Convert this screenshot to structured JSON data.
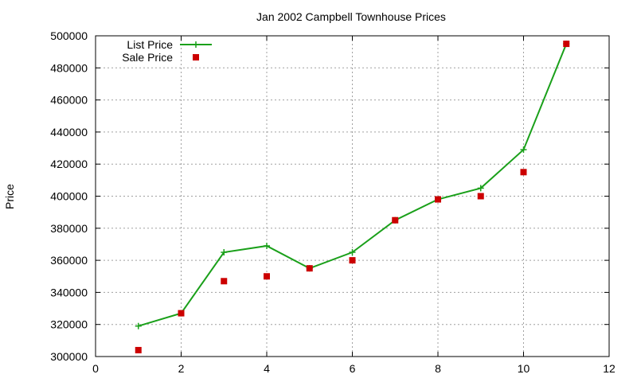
{
  "chart_data": {
    "type": "line",
    "title": "Jan 2002 Campbell Townhouse Prices",
    "xlabel": "",
    "ylabel": "Price",
    "xlim": [
      0,
      12
    ],
    "ylim": [
      300000,
      500000
    ],
    "xticks": [
      0,
      2,
      4,
      6,
      8,
      10,
      12
    ],
    "yticks": [
      300000,
      320000,
      340000,
      360000,
      380000,
      400000,
      420000,
      440000,
      460000,
      480000,
      500000
    ],
    "grid": true,
    "legend_position": "top-left",
    "series": [
      {
        "name": "List Price",
        "style": "line-with-plus-markers",
        "color": "#1aa01a",
        "points": [
          [
            1,
            319000
          ],
          [
            2,
            327000
          ],
          [
            3,
            365000
          ],
          [
            4,
            369000
          ],
          [
            5,
            355000
          ],
          [
            6,
            365000
          ],
          [
            7,
            385000
          ],
          [
            8,
            398000
          ],
          [
            9,
            405000
          ],
          [
            10,
            429000
          ],
          [
            11,
            495000
          ]
        ]
      },
      {
        "name": "Sale Price",
        "style": "square-markers",
        "color": "#cc0000",
        "points": [
          [
            1,
            304000
          ],
          [
            2,
            327000
          ],
          [
            3,
            347000
          ],
          [
            4,
            350000
          ],
          [
            5,
            355000
          ],
          [
            6,
            360000
          ],
          [
            7,
            385000
          ],
          [
            8,
            398000
          ],
          [
            9,
            400000
          ],
          [
            10,
            415000
          ],
          [
            11,
            495000
          ]
        ]
      }
    ]
  }
}
